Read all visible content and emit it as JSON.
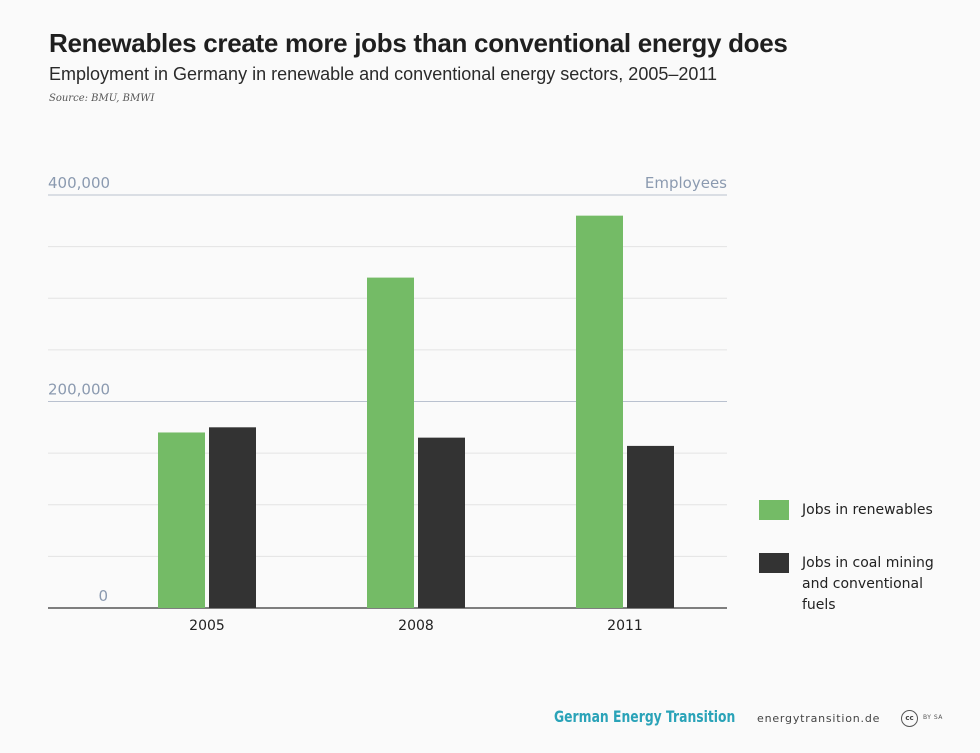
{
  "header": {
    "title": "Renewables create more jobs than conventional energy does",
    "subtitle": "Employment in Germany in renewable and conventional energy sectors, 2005–2011",
    "source": "Source: BMU, BMWI"
  },
  "footer": {
    "brand": "German Energy Transition",
    "site": "energytransition.de",
    "license_badge": "cc",
    "license_text": "BY SA"
  },
  "colors": {
    "renewables": "#74bb66",
    "conventional": "#333333",
    "axis_label": "#8b9ab0",
    "grid_major": "#b9c1cf",
    "grid_minor": "#e3e3e3"
  },
  "legend": [
    {
      "label": "Jobs in renewables"
    },
    {
      "label": "Jobs in coal mining and conventional fuels"
    }
  ],
  "chart_data": {
    "type": "bar",
    "categories": [
      "2005",
      "2008",
      "2011"
    ],
    "series": [
      {
        "name": "Jobs in renewables",
        "values": [
          170000,
          320000,
          380000
        ]
      },
      {
        "name": "Jobs in coal mining and conventional fuels",
        "values": [
          175000,
          165000,
          157000
        ]
      }
    ],
    "ylabel": "Employees",
    "ylim": [
      0,
      400000
    ],
    "yticks": [
      0,
      200000,
      400000
    ],
    "ytick_labels": [
      "0",
      "200,000",
      "400,000"
    ],
    "grid": true,
    "legend_position": "right"
  }
}
